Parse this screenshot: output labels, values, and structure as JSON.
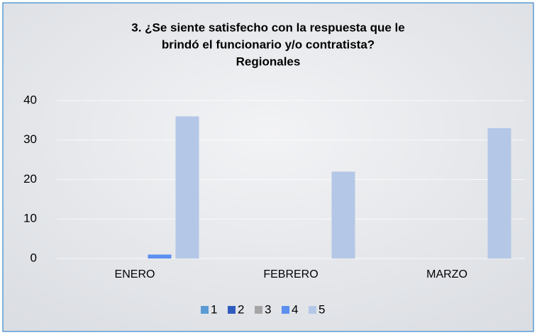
{
  "chart_data": {
    "type": "bar",
    "title": [
      "3. ¿Se siente satisfecho con la respuesta que le",
      "brindó el funcionario y/o contratista?",
      "Regionales"
    ],
    "categories": [
      "ENERO",
      "FEBRERO",
      "MARZO"
    ],
    "series": [
      {
        "name": "1",
        "color": "#5b9bd5",
        "values": [
          0,
          0,
          0
        ]
      },
      {
        "name": "2",
        "color": "#2f5dbf",
        "values": [
          0,
          0,
          0
        ]
      },
      {
        "name": "3",
        "color": "#a5a5a5",
        "values": [
          0,
          0,
          0
        ]
      },
      {
        "name": "4",
        "color": "#5b8ff0",
        "values": [
          1,
          0,
          0
        ]
      },
      {
        "name": "5",
        "color": "#b4c7e7",
        "values": [
          36,
          22,
          33
        ]
      }
    ],
    "ylim": [
      0,
      40
    ],
    "yticks": [
      0,
      10,
      20,
      30,
      40
    ],
    "grid": true,
    "legend": "bottom"
  }
}
